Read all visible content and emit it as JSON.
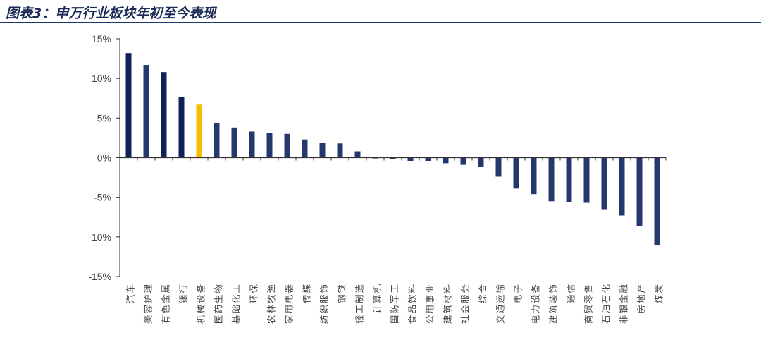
{
  "header": {
    "title": "图表3：申万行业板块年初至今表现"
  },
  "colors": {
    "bar": "#24386b",
    "bar_dark": "#0f2257",
    "highlight": "#f5be00",
    "axis": "#333333"
  },
  "chart_data": {
    "type": "bar",
    "title": "",
    "xlabel": "",
    "ylabel": "",
    "ylim": [
      -15,
      15
    ],
    "yticks": [
      15,
      10,
      5,
      0,
      -5,
      -10,
      -15
    ],
    "ytick_labels": [
      "15%",
      "10%",
      "5%",
      "0%",
      "-5%",
      "-10%",
      "-15%"
    ],
    "highlight_category": "机械设备",
    "grid": false,
    "categories": [
      "汽车",
      "美容护理",
      "有色金属",
      "银行",
      "机械设备",
      "医药生物",
      "基础化工",
      "环保",
      "农林牧渔",
      "家用电器",
      "传媒",
      "纺织服饰",
      "钢铁",
      "轻工制造",
      "计算机",
      "国防军工",
      "食品饮料",
      "公用事业",
      "建筑材料",
      "社会服务",
      "综合",
      "交通运输",
      "电子",
      "电力设备",
      "建筑装饰",
      "通信",
      "商贸零售",
      "石油石化",
      "非银金融",
      "房地产",
      "煤炭"
    ],
    "values": [
      13.2,
      11.7,
      10.8,
      7.7,
      6.7,
      4.4,
      3.8,
      3.3,
      3.1,
      3.0,
      2.3,
      1.9,
      1.8,
      0.8,
      -0.1,
      -0.2,
      -0.4,
      -0.4,
      -0.7,
      -0.9,
      -1.2,
      -2.4,
      -3.9,
      -4.6,
      -5.5,
      -5.6,
      -5.7,
      -6.5,
      -7.3,
      -8.6,
      -11.0
    ]
  }
}
